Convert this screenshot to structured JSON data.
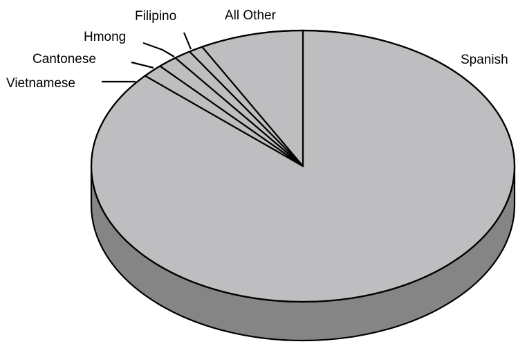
{
  "chart_data": {
    "type": "pie",
    "style": "3d",
    "title": "",
    "categories": [
      "Spanish",
      "Vietnamese",
      "Cantonese",
      "Hmong",
      "Filipino",
      "All Other"
    ],
    "values": [
      86.6,
      1.6,
      1.5,
      1.3,
      1.1,
      7.9
    ],
    "colors": {
      "top": "#bebec0",
      "side": "#858585",
      "outline": "#000000",
      "background": "#ffffff"
    }
  }
}
